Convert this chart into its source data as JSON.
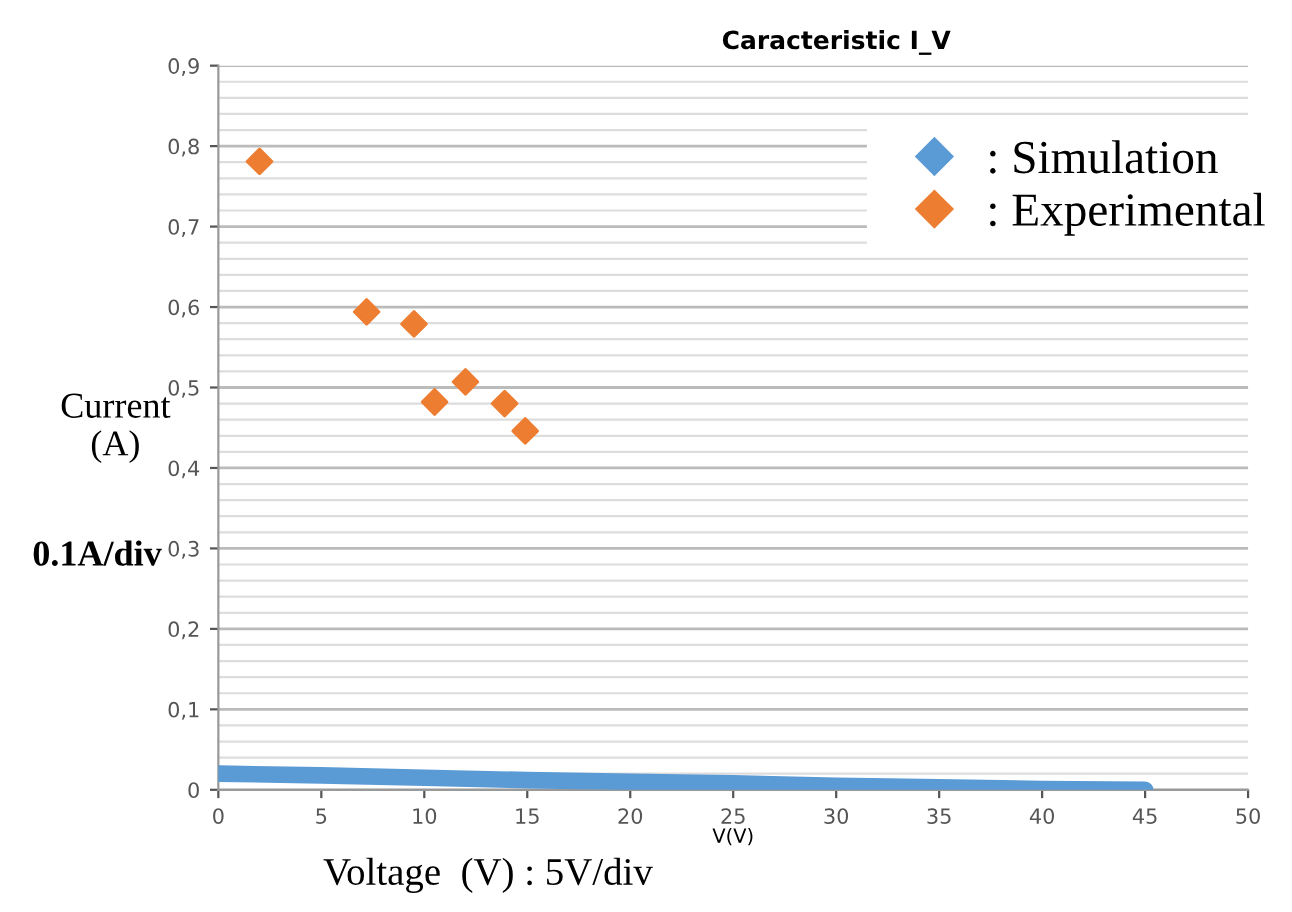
{
  "chart_data": {
    "type": "scatter",
    "title": "Caracteristic I_V",
    "xlabel": "V(V)",
    "ylabel": "Current\n(A)",
    "annotations": [
      "0.1A/div",
      "Voltage  (V) : 5V/div"
    ],
    "xlim": [
      0,
      50
    ],
    "xticks": [
      0,
      5,
      10,
      15,
      20,
      25,
      30,
      35,
      40,
      45,
      50
    ],
    "ylim": [
      0,
      0.9
    ],
    "yticks": [
      0,
      {
        "value": 0.1,
        "label": "0,1"
      },
      {
        "value": 0.2,
        "label": "0,2"
      },
      {
        "value": 0.3,
        "label": "0,3"
      },
      {
        "value": 0.4,
        "label": "0,4"
      },
      {
        "value": 0.5,
        "label": "0,5"
      },
      {
        "value": 0.6,
        "label": "0,6"
      },
      {
        "value": 0.7,
        "label": "0,7"
      },
      {
        "value": 0.8,
        "label": "0,8"
      },
      {
        "value": 0.9,
        "label": "0,9"
      }
    ],
    "grid": "y",
    "legend": "top right",
    "marker": "diamond",
    "series": [
      {
        "name": ": Simulation",
        "type": "line",
        "marker": "none",
        "color": "#5b9bd5",
        "x": [
          0,
          5,
          10,
          15,
          20,
          25,
          30,
          35,
          40,
          45
        ],
        "values": [
          0.02,
          0.018,
          0.015,
          0.012,
          0.01,
          0.008,
          0.005,
          0.003,
          0.001,
          0.0
        ]
      },
      {
        "name": ": Experimental",
        "color": "#ed7d31",
        "x": [
          2.0,
          7.2,
          9.5,
          10.5,
          12.0,
          13.9,
          14.9
        ],
        "values": [
          0.781,
          0.594,
          0.579,
          0.482,
          0.507,
          0.48,
          0.446
        ]
      }
    ]
  }
}
